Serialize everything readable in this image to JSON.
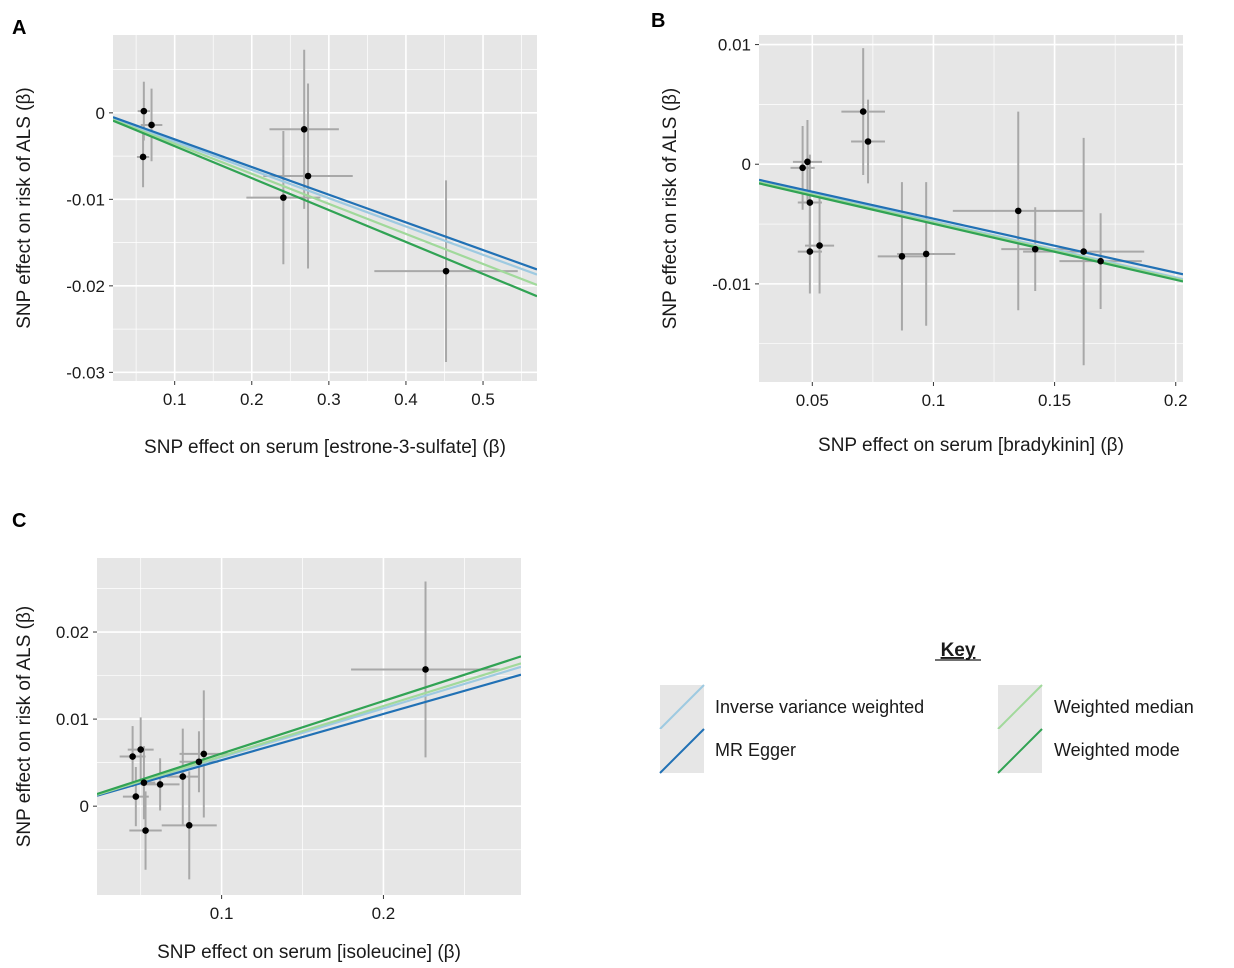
{
  "colors": {
    "panel_bg": "#e6e6e6",
    "grid": "#ffffff",
    "errorbar": "#a8a8a8",
    "point": "#000000"
  },
  "methods": [
    {
      "name": "Inverse variance weighted",
      "color": "#9ecae1"
    },
    {
      "name": "MR Egger",
      "color": "#2171b5"
    },
    {
      "name": "Weighted median",
      "color": "#a1d99b"
    },
    {
      "name": "Weighted mode",
      "color": "#31a354"
    }
  ],
  "key": {
    "title": "Key",
    "items": [
      "Inverse variance weighted",
      "MR Egger",
      "Weighted median",
      "Weighted mode"
    ]
  },
  "chart_data": [
    {
      "panel": "A",
      "type": "scatter",
      "xlabel": "SNP effect on serum [estrone-3-sulfate] (β)",
      "ylabel": "SNP effect on risk of ALS (β)",
      "xlim": [
        0.02,
        0.57
      ],
      "ylim": [
        -0.031,
        0.009
      ],
      "xticks": [
        0.1,
        0.2,
        0.3,
        0.4,
        0.5
      ],
      "xtick_labels": [
        "0.1",
        "0.2",
        "0.3",
        "0.4",
        "0.5"
      ],
      "yticks": [
        0,
        -0.01,
        -0.02,
        -0.03
      ],
      "ytick_labels": [
        "0",
        "-0.01",
        "-0.02",
        "-0.03"
      ],
      "points": [
        {
          "x": 0.06,
          "y": 0.0002,
          "xerr": 0.008,
          "yerr": 0.0034
        },
        {
          "x": 0.059,
          "y": -0.0051,
          "xerr": 0.008,
          "yerr": 0.0035
        },
        {
          "x": 0.07,
          "y": -0.0014,
          "xerr": 0.014,
          "yerr": 0.0042
        },
        {
          "x": 0.268,
          "y": -0.0019,
          "xerr": 0.045,
          "yerr": 0.0092
        },
        {
          "x": 0.273,
          "y": -0.0073,
          "xerr": 0.058,
          "yerr": 0.0107
        },
        {
          "x": 0.241,
          "y": -0.0098,
          "xerr": 0.048,
          "yerr": 0.0077
        },
        {
          "x": 0.452,
          "y": -0.0183,
          "xerr": 0.093,
          "yerr": 0.0105
        }
      ],
      "lines": [
        {
          "method": "Inverse variance weighted",
          "y_start": -0.0007,
          "y_end": -0.0187
        },
        {
          "method": "MR Egger",
          "y_start": -0.0005,
          "y_end": -0.0181
        },
        {
          "method": "Weighted median",
          "y_start": -0.0008,
          "y_end": -0.0199
        },
        {
          "method": "Weighted mode",
          "y_start": -0.0009,
          "y_end": -0.0212
        }
      ]
    },
    {
      "panel": "B",
      "type": "scatter",
      "xlabel": "SNP effect on serum [bradykinin] (β)",
      "ylabel": "SNP effect on risk of ALS (β)",
      "xlim": [
        0.028,
        0.203
      ],
      "ylim": [
        -0.0182,
        0.0108
      ],
      "xticks": [
        0.05,
        0.1,
        0.15,
        0.2
      ],
      "xtick_labels": [
        "0.05",
        "0.1",
        "0.15",
        "0.2"
      ],
      "yticks": [
        0.01,
        0,
        -0.01
      ],
      "ytick_labels": [
        "0.01",
        "0",
        "-0.01"
      ],
      "points": [
        {
          "x": 0.046,
          "y": -0.0003,
          "xerr": 0.005,
          "yerr": 0.0035
        },
        {
          "x": 0.048,
          "y": 0.0002,
          "xerr": 0.006,
          "yerr": 0.0035
        },
        {
          "x": 0.049,
          "y": -0.0032,
          "xerr": 0.005,
          "yerr": 0.004
        },
        {
          "x": 0.049,
          "y": -0.0073,
          "xerr": 0.005,
          "yerr": 0.0035
        },
        {
          "x": 0.053,
          "y": -0.0068,
          "xerr": 0.006,
          "yerr": 0.004
        },
        {
          "x": 0.071,
          "y": 0.0044,
          "xerr": 0.009,
          "yerr": 0.0053
        },
        {
          "x": 0.073,
          "y": 0.0019,
          "xerr": 0.007,
          "yerr": 0.0035
        },
        {
          "x": 0.087,
          "y": -0.0077,
          "xerr": 0.01,
          "yerr": 0.0062
        },
        {
          "x": 0.097,
          "y": -0.0075,
          "xerr": 0.012,
          "yerr": 0.006
        },
        {
          "x": 0.135,
          "y": -0.0039,
          "xerr": 0.027,
          "yerr": 0.0083
        },
        {
          "x": 0.142,
          "y": -0.0071,
          "xerr": 0.014,
          "yerr": 0.0035
        },
        {
          "x": 0.162,
          "y": -0.0073,
          "xerr": 0.025,
          "yerr": 0.0095
        },
        {
          "x": 0.169,
          "y": -0.0081,
          "xerr": 0.017,
          "yerr": 0.004
        }
      ],
      "lines": [
        {
          "method": "Inverse variance weighted",
          "y_start": -0.0014,
          "y_end": -0.0096
        },
        {
          "method": "MR Egger",
          "y_start": -0.0013,
          "y_end": -0.0092
        },
        {
          "method": "Weighted median",
          "y_start": -0.0015,
          "y_end": -0.0097
        },
        {
          "method": "Weighted mode",
          "y_start": -0.0016,
          "y_end": -0.0098
        }
      ]
    },
    {
      "panel": "C",
      "type": "scatter",
      "xlabel": "SNP effect on serum [isoleucine] (β)",
      "ylabel": "SNP effect on risk of ALS (β)",
      "xlim": [
        0.023,
        0.285
      ],
      "ylim": [
        -0.0102,
        0.0285
      ],
      "xticks": [
        0.1,
        0.2
      ],
      "xtick_labels": [
        "0.1",
        "0.2"
      ],
      "yticks": [
        0.02,
        0.01,
        0
      ],
      "ytick_labels": [
        "0.02",
        "0.01",
        "0"
      ],
      "points": [
        {
          "x": 0.045,
          "y": 0.0057,
          "xerr": 0.008,
          "yerr": 0.0035
        },
        {
          "x": 0.05,
          "y": 0.0065,
          "xerr": 0.008,
          "yerr": 0.0037
        },
        {
          "x": 0.047,
          "y": 0.0011,
          "xerr": 0.008,
          "yerr": 0.0034
        },
        {
          "x": 0.052,
          "y": 0.0027,
          "xerr": 0.007,
          "yerr": 0.0042
        },
        {
          "x": 0.053,
          "y": -0.0028,
          "xerr": 0.01,
          "yerr": 0.0045
        },
        {
          "x": 0.062,
          "y": 0.0025,
          "xerr": 0.012,
          "yerr": 0.003
        },
        {
          "x": 0.076,
          "y": 0.0034,
          "xerr": 0.01,
          "yerr": 0.0055
        },
        {
          "x": 0.08,
          "y": -0.0022,
          "xerr": 0.017,
          "yerr": 0.0062
        },
        {
          "x": 0.086,
          "y": 0.0051,
          "xerr": 0.012,
          "yerr": 0.0035
        },
        {
          "x": 0.089,
          "y": 0.006,
          "xerr": 0.015,
          "yerr": 0.0073
        },
        {
          "x": 0.226,
          "y": 0.0157,
          "xerr": 0.046,
          "yerr": 0.0101
        }
      ],
      "lines": [
        {
          "method": "Inverse variance weighted",
          "y_start": 0.0013,
          "y_end": 0.016
        },
        {
          "method": "MR Egger",
          "y_start": 0.0012,
          "y_end": 0.0151
        },
        {
          "method": "Weighted median",
          "y_start": 0.0013,
          "y_end": 0.0164
        },
        {
          "method": "Weighted mode",
          "y_start": 0.0014,
          "y_end": 0.0172
        }
      ]
    }
  ]
}
